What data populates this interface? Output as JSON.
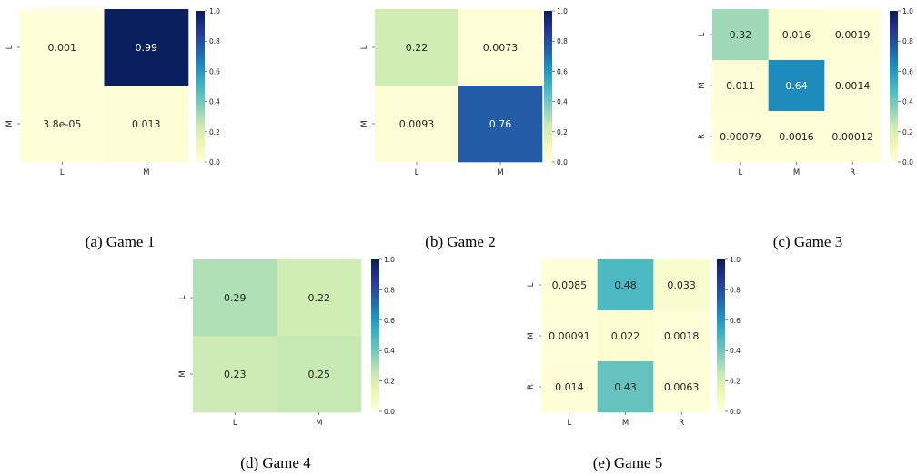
{
  "chart_data": [
    {
      "type": "heatmap",
      "caption": "(a) Game 1",
      "row_labels": [
        "L",
        "M"
      ],
      "col_labels": [
        "L",
        "M"
      ],
      "values": [
        [
          0.001,
          0.99
        ],
        [
          3.8e-05,
          0.013
        ]
      ],
      "value_labels": [
        [
          "0.001",
          "0.99"
        ],
        [
          "3.8e-05",
          "0.013"
        ]
      ],
      "colorbar": {
        "range": [
          0.0,
          1.0
        ],
        "ticks": [
          "0.0",
          "0.2",
          "0.4",
          "0.6",
          "0.8",
          "1.0"
        ],
        "colormap": "YlGnBu"
      }
    },
    {
      "type": "heatmap",
      "caption": "(b) Game 2",
      "row_labels": [
        "L",
        "M"
      ],
      "col_labels": [
        "L",
        "M"
      ],
      "values": [
        [
          0.22,
          0.0073
        ],
        [
          0.0093,
          0.76
        ]
      ],
      "value_labels": [
        [
          "0.22",
          "0.0073"
        ],
        [
          "0.0093",
          "0.76"
        ]
      ],
      "colorbar": {
        "range": [
          0.0,
          1.0
        ],
        "ticks": [
          "0.0",
          "0.2",
          "0.4",
          "0.6",
          "0.8",
          "1.0"
        ],
        "colormap": "YlGnBu"
      }
    },
    {
      "type": "heatmap",
      "caption": "(c) Game 3",
      "row_labels": [
        "L",
        "M",
        "R"
      ],
      "col_labels": [
        "L",
        "M",
        "R"
      ],
      "values": [
        [
          0.32,
          0.016,
          0.0019
        ],
        [
          0.011,
          0.64,
          0.0014
        ],
        [
          0.00079,
          0.0016,
          0.00012
        ]
      ],
      "value_labels": [
        [
          "0.32",
          "0.016",
          "0.0019"
        ],
        [
          "0.011",
          "0.64",
          "0.0014"
        ],
        [
          "0.00079",
          "0.0016",
          "0.00012"
        ]
      ],
      "colorbar": {
        "range": [
          0.0,
          1.0
        ],
        "ticks": [
          "0.0",
          "0.2",
          "0.4",
          "0.6",
          "0.8",
          "1.0"
        ],
        "colormap": "YlGnBu"
      }
    },
    {
      "type": "heatmap",
      "caption": "(d) Game 4",
      "row_labels": [
        "L",
        "M"
      ],
      "col_labels": [
        "L",
        "M"
      ],
      "values": [
        [
          0.29,
          0.22
        ],
        [
          0.23,
          0.25
        ]
      ],
      "value_labels": [
        [
          "0.29",
          "0.22"
        ],
        [
          "0.23",
          "0.25"
        ]
      ],
      "colorbar": {
        "range": [
          0.0,
          1.0
        ],
        "ticks": [
          "0.0",
          "0.2",
          "0.4",
          "0.6",
          "0.8",
          "1.0"
        ],
        "colormap": "YlGnBu"
      }
    },
    {
      "type": "heatmap",
      "caption": "(e) Game 5",
      "row_labels": [
        "L",
        "M",
        "R"
      ],
      "col_labels": [
        "L",
        "M",
        "R"
      ],
      "values": [
        [
          0.0085,
          0.48,
          0.033
        ],
        [
          0.00091,
          0.022,
          0.0018
        ],
        [
          0.014,
          0.43,
          0.0063
        ]
      ],
      "value_labels": [
        [
          "0.0085",
          "0.48",
          "0.033"
        ],
        [
          "0.00091",
          "0.022",
          "0.0018"
        ],
        [
          "0.014",
          "0.43",
          "0.0063"
        ]
      ],
      "colorbar": {
        "range": [
          0.0,
          1.0
        ],
        "ticks": [
          "0.0",
          "0.2",
          "0.4",
          "0.6",
          "0.8",
          "1.0"
        ],
        "colormap": "YlGnBu"
      }
    }
  ]
}
